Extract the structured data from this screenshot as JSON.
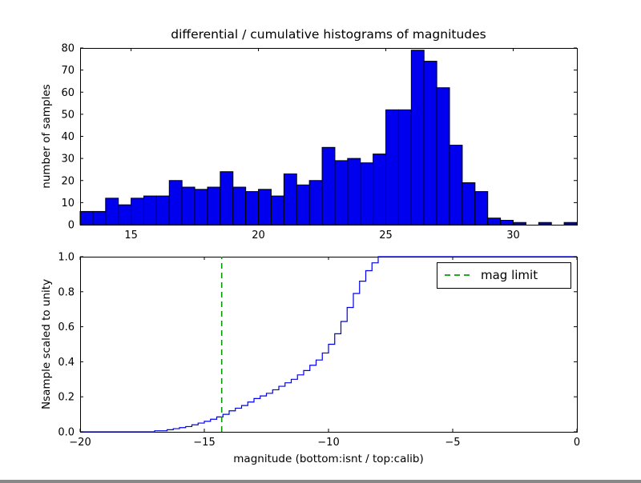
{
  "figure": {
    "background": "#ffffff"
  },
  "chart_data": [
    {
      "type": "bar",
      "name": "differential-histogram",
      "title": "differential / cumulative histograms of magnitudes",
      "ylabel": "number of samples",
      "xlabel": "",
      "xlim": [
        13,
        32.5
      ],
      "ylim": [
        0,
        80
      ],
      "bin_start": 13.0,
      "bin_width": 0.5,
      "values": [
        6,
        6,
        12,
        9,
        12,
        13,
        13,
        20,
        17,
        16,
        17,
        24,
        17,
        15,
        16,
        13,
        23,
        18,
        20,
        35,
        29,
        30,
        28,
        32,
        52,
        52,
        79,
        74,
        62,
        36,
        19,
        15,
        3,
        2,
        1,
        0,
        1,
        0,
        1
      ],
      "xticks": [
        15,
        20,
        25,
        30
      ],
      "xticklabels": [
        "15",
        "20",
        "25",
        "30"
      ],
      "yticks": [
        0,
        10,
        20,
        30,
        40,
        50,
        60,
        70,
        80
      ],
      "yticklabels": [
        "0",
        "10",
        "20",
        "30",
        "40",
        "50",
        "60",
        "70",
        "80"
      ],
      "bar_color": "#0000ee",
      "bar_edge_color": "#000000",
      "grid": false
    },
    {
      "type": "line",
      "name": "cumulative-histogram",
      "style": "step",
      "title": "",
      "xlabel": "magnitude (bottom:isnt / top:calib)",
      "ylabel": "Nsample scaled to unity",
      "xlim": [
        -20,
        0
      ],
      "ylim": [
        0,
        1
      ],
      "xticks": [
        -20,
        -15,
        -10,
        -5,
        0
      ],
      "xticklabels": [
        "−20",
        "−15",
        "−10",
        "−5",
        "0"
      ],
      "yticks": [
        0,
        0.2,
        0.4,
        0.6,
        0.8,
        1
      ],
      "yticklabels": [
        "0.0",
        "0.2",
        "0.4",
        "0.6",
        "0.8",
        "1.0"
      ],
      "line_color": "#0000ee",
      "steps": [
        [
          -17.0,
          0.006
        ],
        [
          -16.5,
          0.012
        ],
        [
          -16.25,
          0.018
        ],
        [
          -16.0,
          0.024
        ],
        [
          -15.75,
          0.03
        ],
        [
          -15.5,
          0.04
        ],
        [
          -15.25,
          0.05
        ],
        [
          -15.0,
          0.06
        ],
        [
          -14.75,
          0.072
        ],
        [
          -14.5,
          0.085
        ],
        [
          -14.25,
          0.1
        ],
        [
          -14.0,
          0.12
        ],
        [
          -13.75,
          0.135
        ],
        [
          -13.5,
          0.15
        ],
        [
          -13.25,
          0.17
        ],
        [
          -13.0,
          0.19
        ],
        [
          -12.75,
          0.205
        ],
        [
          -12.5,
          0.22
        ],
        [
          -12.25,
          0.24
        ],
        [
          -12.0,
          0.26
        ],
        [
          -11.75,
          0.28
        ],
        [
          -11.5,
          0.3
        ],
        [
          -11.25,
          0.325
        ],
        [
          -11.0,
          0.35
        ],
        [
          -10.75,
          0.38
        ],
        [
          -10.5,
          0.41
        ],
        [
          -10.25,
          0.45
        ],
        [
          -10.0,
          0.5
        ],
        [
          -9.75,
          0.56
        ],
        [
          -9.5,
          0.63
        ],
        [
          -9.25,
          0.71
        ],
        [
          -9.0,
          0.79
        ],
        [
          -8.75,
          0.86
        ],
        [
          -8.5,
          0.92
        ],
        [
          -8.25,
          0.965
        ],
        [
          -8.0,
          1.0
        ],
        [
          0,
          1.0
        ]
      ],
      "vline": {
        "x": -14.3,
        "color": "#00a000",
        "style": "dashed",
        "label": "mag limit"
      },
      "legend": {
        "position": "upper right",
        "entries": [
          {
            "label": "mag limit",
            "color": "#00a000",
            "style": "dashed"
          }
        ]
      },
      "grid": false
    }
  ]
}
